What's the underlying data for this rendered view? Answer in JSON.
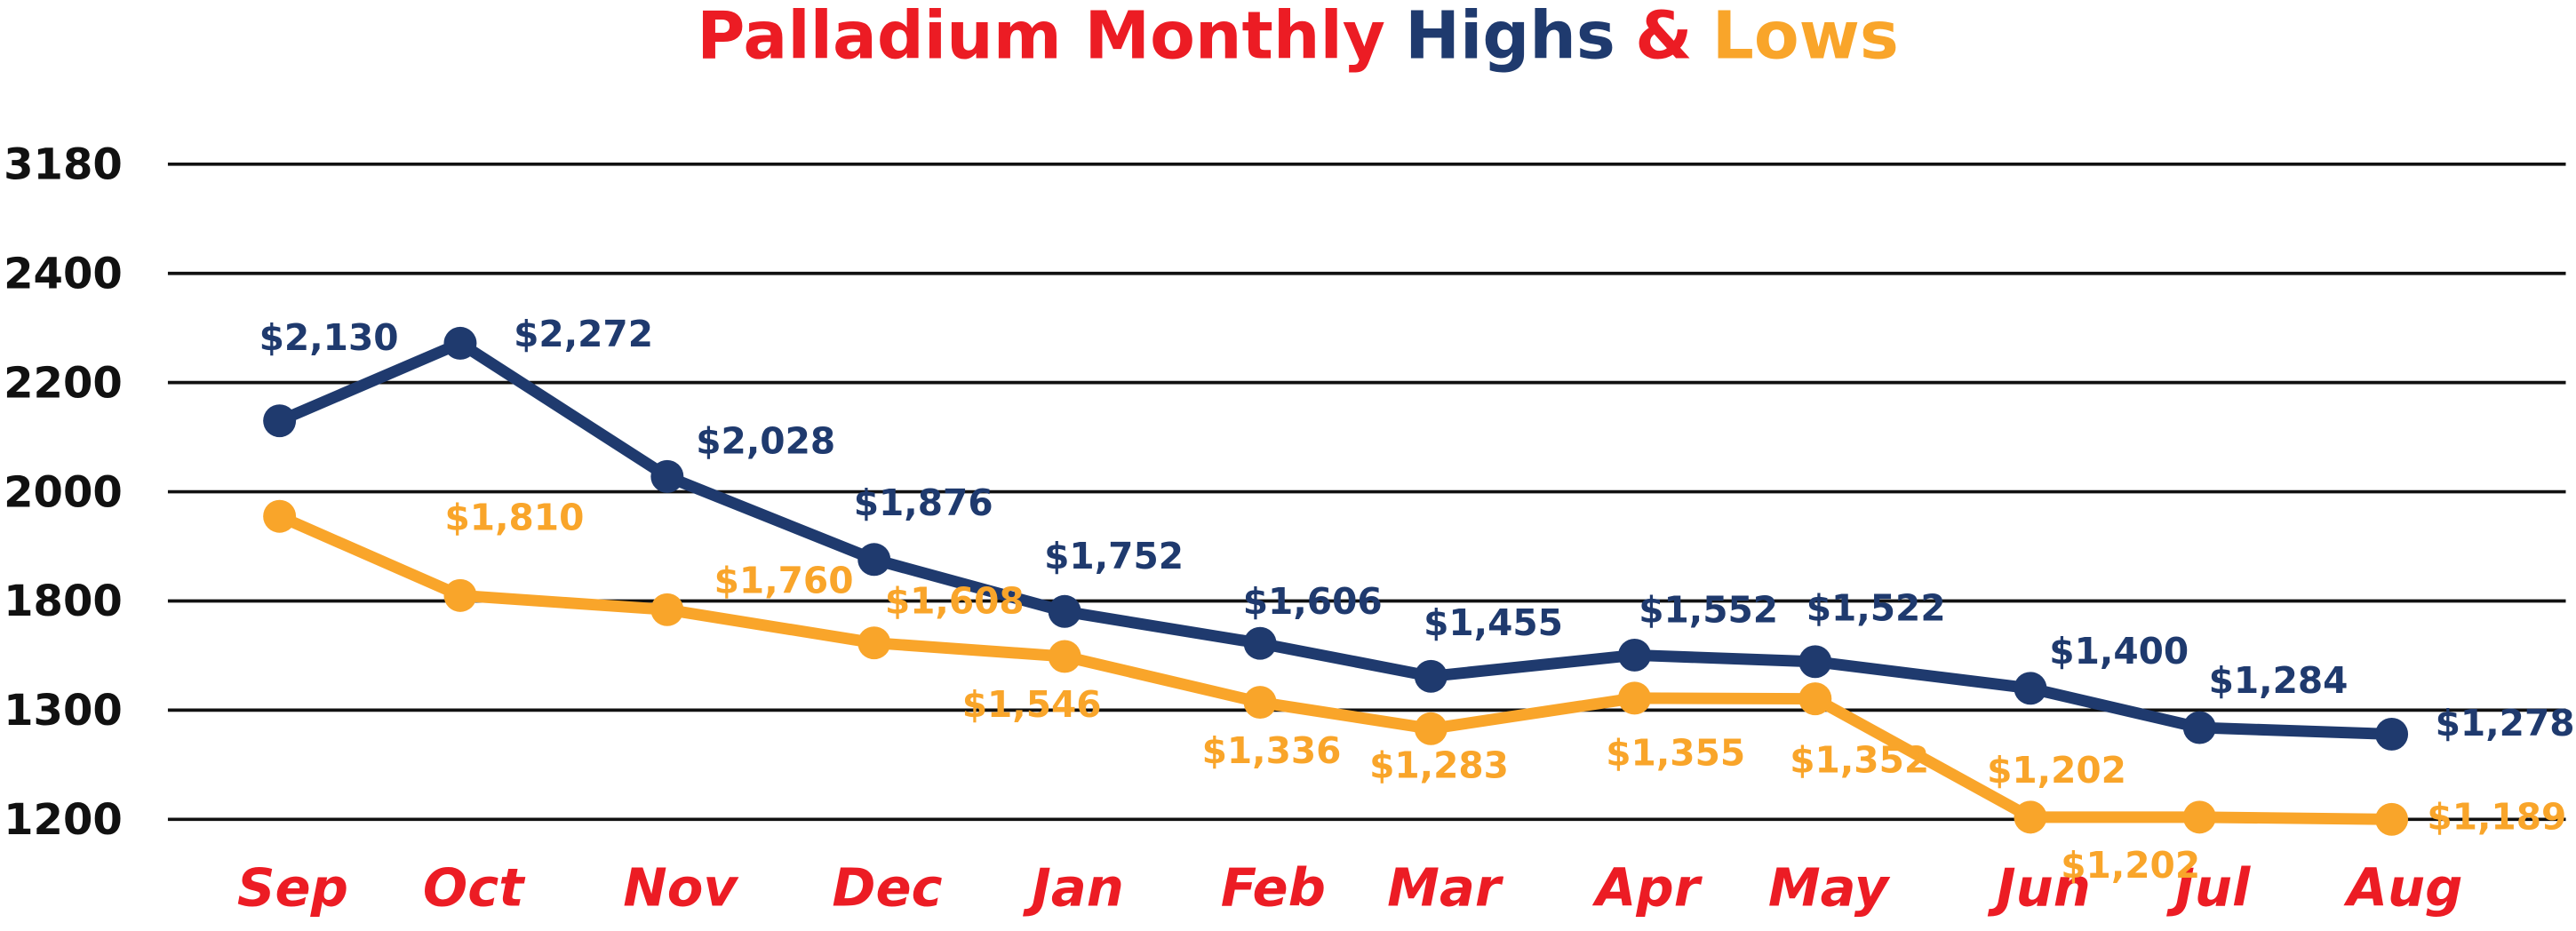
{
  "chart_data": {
    "type": "line",
    "title": [
      {
        "text": "Palladium Monthly",
        "color": "#ec1c24"
      },
      {
        "text": "Highs",
        "color": "#1f3a6e"
      },
      {
        "text": "&",
        "color": "#ec1c24"
      },
      {
        "text": "Lows",
        "color": "#f9a52a"
      }
    ],
    "categories": [
      "Sep",
      "Oct",
      "Nov",
      "Dec",
      "Jan",
      "Feb",
      "Mar",
      "Apr",
      "May",
      "Jun",
      "Jul",
      "Aug"
    ],
    "series": [
      {
        "name": "Highs",
        "color": "#1f3a6e",
        "values": [
          2130,
          2272,
          2028,
          1876,
          1752,
          1606,
          1455,
          1552,
          1522,
          1400,
          1284,
          1278
        ],
        "value_labels": [
          "$2,130",
          "$2,272",
          "$2,028",
          "$1,876",
          "$1,752",
          "$1,606",
          "$1,455",
          "$1,552",
          "$1,522",
          "$1,400",
          "$1,284",
          "$1,278"
        ]
      },
      {
        "name": "Lows",
        "color": "#f9a52a",
        "values": [
          1955,
          1810,
          1760,
          1608,
          1546,
          1336,
          1283,
          1355,
          1352,
          1202,
          1202,
          1189
        ],
        "value_labels": [
          null,
          "$1,810",
          "$1,760",
          "$1,608",
          "$1,546",
          "$1,336",
          "$1,283",
          "$1,355",
          "$1,352",
          "$1,202",
          "$1,202",
          "$1,189"
        ]
      }
    ],
    "ylim": [
      1200,
      3180
    ],
    "yticks": [
      3180,
      2400,
      2200,
      2000,
      1800,
      1300,
      1200
    ],
    "grid": true,
    "category_color": "#ec1c24"
  }
}
